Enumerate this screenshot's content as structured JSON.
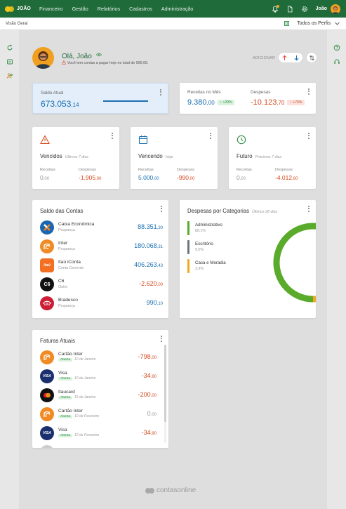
{
  "app": {
    "name": "JOÃO"
  },
  "nav": {
    "items": [
      "Financeiro",
      "Gestão",
      "Relatórios",
      "Cadastros",
      "Administração"
    ]
  },
  "user": {
    "name": "João"
  },
  "subbar": {
    "breadcrumb": "Visão Geral",
    "profile": "Todos os Perfis"
  },
  "greeting": {
    "title": "Olá, João",
    "subtitle": "Você tem contas a pagar hoje no total de 990,00.",
    "add_label": "ADICIONAR"
  },
  "saldo_atual": {
    "label": "Saldo Atual",
    "int": "673.053",
    "dec": ",14"
  },
  "receitas_despesas": {
    "receitas_label": "Receitas no Mês",
    "receitas_int": "9.380",
    "receitas_dec": ",00",
    "receitas_badge": "+29%",
    "despesas_label": "Despesas",
    "despesas_int": "-10.123",
    "despesas_dec": ",70",
    "despesas_badge": "+76%"
  },
  "status_cards": [
    {
      "title": "Vencidos",
      "sub": "Últimos 7 dias",
      "rec_label": "Receitas",
      "rec_int": "0",
      "rec_dec": ",00",
      "des_label": "Despesas",
      "des_int": "-1.905",
      "des_dec": ",00",
      "color": "#d64a1e"
    },
    {
      "title": "Vencendo",
      "sub": "Hoje",
      "rec_label": "Receitas",
      "rec_int": "5.000",
      "rec_dec": ",00",
      "des_label": "Despesas",
      "des_int": "-990",
      "des_dec": ",00",
      "color": "#1a6fb0"
    },
    {
      "title": "Futuro",
      "sub": "Próximos 7 dias",
      "rec_label": "Receitas",
      "rec_int": "0",
      "rec_dec": ",00",
      "des_label": "Despesas",
      "des_int": "-4.012",
      "des_dec": ",60",
      "color": "#2e8b44"
    }
  ],
  "saldo_contas": {
    "title": "Saldo das Contas",
    "accounts": [
      {
        "name": "Caixa Econômica",
        "type": "Poupança",
        "int": "88.351",
        "dec": ",30",
        "logo": "X",
        "color": "#1b66b1"
      },
      {
        "name": "Inter",
        "type": "Poupança",
        "int": "180.068",
        "dec": ",31",
        "logo": "",
        "color": "#f08a24"
      },
      {
        "name": "Itaú iConta",
        "type": "Conta Corrente",
        "int": "406.263",
        "dec": ",43",
        "logo": "itaú",
        "color": "#f36f21"
      },
      {
        "name": "C6",
        "type": "Outro",
        "int": "-2.620",
        "dec": ",00",
        "logo": "C6",
        "color": "#111111"
      },
      {
        "name": "Bradesco",
        "type": "Poupança",
        "int": "990",
        "dec": ",10",
        "logo": "",
        "color": "#cc1f36"
      }
    ]
  },
  "despesas_categorias": {
    "title": "Despesas por Categorias",
    "sub": "Últimos 28 dias",
    "items": [
      {
        "name": "Administrativo",
        "pct": "88,1%",
        "value": 88.1,
        "color": "#5aab2c"
      },
      {
        "name": "Escritório",
        "pct": "9,0%",
        "value": 9.0,
        "color": "#6b7780"
      },
      {
        "name": "Casa e Moradia",
        "pct": "3,9%",
        "value": 3.9,
        "color": "#f0a81e"
      }
    ]
  },
  "faturas": {
    "title": "Faturas Atuais",
    "status_label": "Aberta",
    "items": [
      {
        "name": "Cartão Inter",
        "date": "10 de Janeiro",
        "int": "-798",
        "dec": ",00",
        "logo": "",
        "color": "#f08a24"
      },
      {
        "name": "Visa",
        "date": "10 de Janeiro",
        "int": "-34",
        "dec": ",90",
        "logo": "VISA",
        "color": "#1a2f6e"
      },
      {
        "name": "Itaucard",
        "date": "15 de Janeiro",
        "int": "-200",
        "dec": ",00",
        "logo": "",
        "color": "#111111"
      },
      {
        "name": "Cartão Inter",
        "date": "10 de Fevereiro",
        "int": "0",
        "dec": ",00",
        "logo": "",
        "color": "#f08a24"
      },
      {
        "name": "Visa",
        "date": "10 de Fevereiro",
        "int": "-34",
        "dec": ",90",
        "logo": "VISA",
        "color": "#1a2f6e"
      }
    ]
  },
  "footer": {
    "brand": "contasonline"
  }
}
